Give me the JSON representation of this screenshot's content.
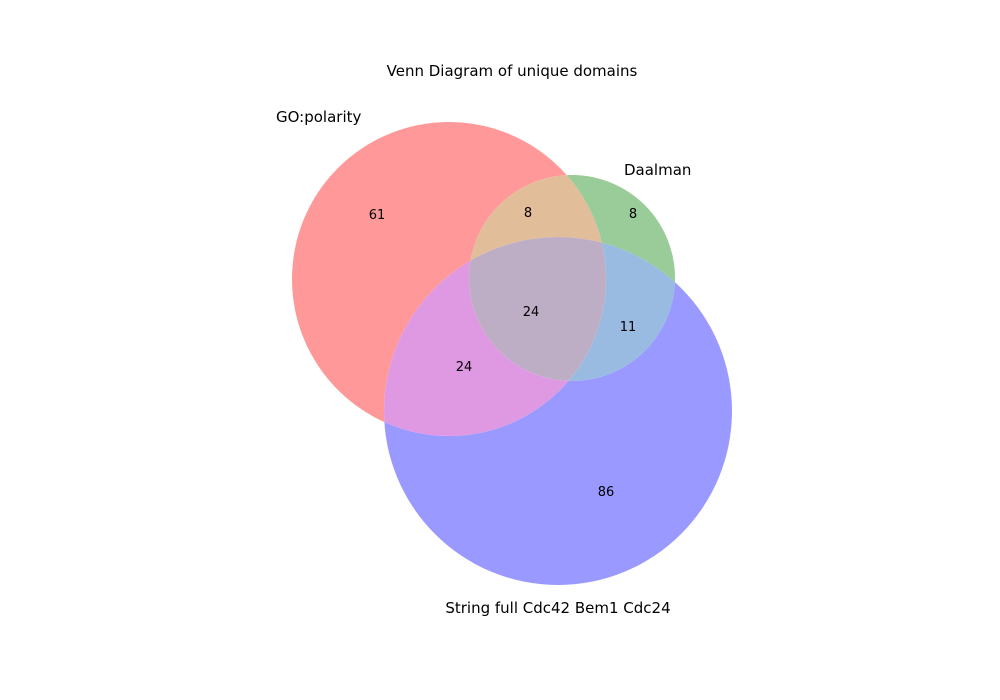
{
  "title": "Venn Diagram of unique domains",
  "sets": {
    "a": {
      "name": "GO:polarity",
      "color": "#ff9999"
    },
    "b": {
      "name": "Daalman",
      "color": "#99cc99"
    },
    "c": {
      "name": "String full Cdc42 Bem1 Cdc24",
      "color": "#9999ff"
    }
  },
  "regions": {
    "a_only": "61",
    "b_only": "8",
    "ab_only": "8",
    "c_only": "86",
    "ac_only": "24",
    "bc_only": "11",
    "abc": "24"
  }
}
